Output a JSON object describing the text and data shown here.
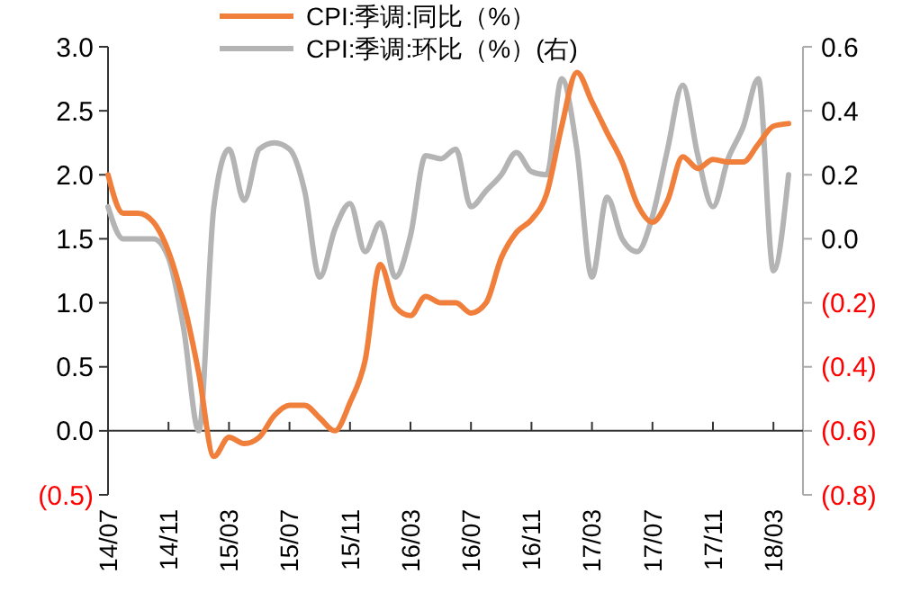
{
  "chart_data": {
    "type": "line",
    "categories": [
      "14/07",
      null,
      null,
      null,
      "14/11",
      null,
      null,
      null,
      "15/03",
      null,
      null,
      null,
      "15/07",
      null,
      null,
      null,
      "15/11",
      null,
      null,
      null,
      "16/03",
      null,
      null,
      null,
      "16/07",
      null,
      null,
      null,
      "16/11",
      null,
      null,
      null,
      "17/03",
      null,
      null,
      null,
      "17/07",
      null,
      null,
      null,
      "17/11",
      null,
      null,
      null,
      "18/03",
      null
    ],
    "series": [
      {
        "name": "CPI:季调:同比（%）",
        "color": "#f07f3c",
        "values": [
          2.0,
          1.7,
          1.7,
          1.63,
          1.4,
          1.0,
          0.45,
          -0.2,
          -0.05,
          -0.1,
          -0.05,
          0.12,
          0.2,
          0.2,
          0.1,
          0.0,
          0.22,
          0.55,
          1.3,
          0.97,
          0.9,
          1.05,
          1.0,
          1.0,
          0.92,
          1.0,
          1.35,
          1.55,
          1.65,
          1.85,
          2.38,
          2.8,
          2.57,
          2.33,
          2.1,
          1.77,
          1.63,
          1.8,
          2.14,
          2.05,
          2.12,
          2.1,
          2.1,
          2.24,
          2.38,
          2.4
        ]
      },
      {
        "name": "CPI:季调:环比（%）(右)",
        "color": "#b4b4b4",
        "axis": "y2",
        "values": [
          0.1,
          0.0,
          0.0,
          0.0,
          -0.06,
          -0.28,
          -0.6,
          0.1,
          0.28,
          0.12,
          0.28,
          0.3,
          0.28,
          0.15,
          -0.12,
          0.03,
          0.11,
          -0.04,
          0.05,
          -0.12,
          0.01,
          0.26,
          0.25,
          0.28,
          0.1,
          0.15,
          0.2,
          0.27,
          0.21,
          0.2,
          0.5,
          0.28,
          -0.12,
          0.13,
          0.0,
          -0.04,
          0.07,
          0.28,
          0.48,
          0.26,
          0.1,
          0.25,
          0.35,
          0.5,
          -0.1,
          0.2
        ]
      }
    ],
    "ylim": [
      -0.5,
      3.0
    ],
    "yticks": [
      {
        "value": -0.5,
        "label": "(0.5)"
      },
      {
        "value": 0,
        "label": "0.0"
      },
      {
        "value": 0.5,
        "label": "0.5"
      },
      {
        "value": 1,
        "label": "1.0"
      },
      {
        "value": 1.5,
        "label": "1.5"
      },
      {
        "value": 2,
        "label": "2.0"
      },
      {
        "value": 2.5,
        "label": "2.5"
      },
      {
        "value": 3,
        "label": "3.0"
      }
    ],
    "y2lim": [
      -0.8,
      0.6
    ],
    "y2ticks": [
      {
        "value": -0.8,
        "label": "(0.8)"
      },
      {
        "value": -0.6,
        "label": "(0.6)"
      },
      {
        "value": -0.4,
        "label": "(0.4)"
      },
      {
        "value": -0.2,
        "label": "(0.2)"
      },
      {
        "value": 0,
        "label": "0.0"
      },
      {
        "value": 0.2,
        "label": "0.2"
      },
      {
        "value": 0.4,
        "label": "0.4"
      },
      {
        "value": 0.6,
        "label": "0.6"
      }
    ],
    "legend": "top"
  }
}
